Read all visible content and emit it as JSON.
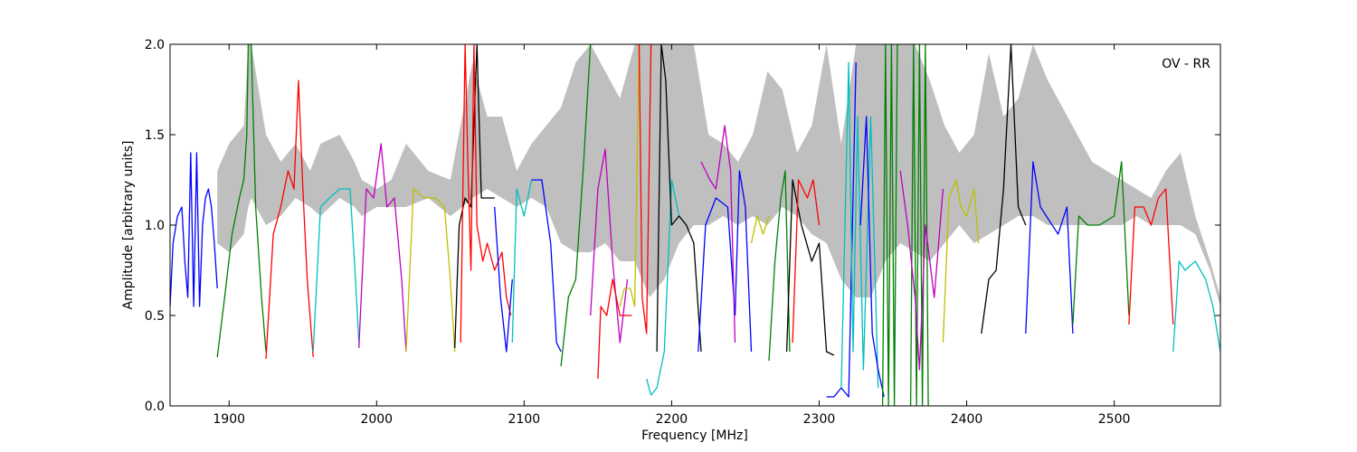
{
  "chart_data": {
    "type": "line",
    "title": "",
    "xlabel": "Frequency [MHz]",
    "ylabel": "Amplitude [arbitrary units]",
    "xlim": [
      1860,
      2572
    ],
    "ylim": [
      0.0,
      2.0
    ],
    "x_ticks": [
      "1900",
      "2000",
      "2100",
      "2200",
      "2300",
      "2400",
      "2500"
    ],
    "x_tick_values": [
      1900,
      2000,
      2100,
      2200,
      2300,
      2400,
      2500
    ],
    "y_ticks": [
      "0.0",
      "0.5",
      "1.0",
      "1.5",
      "2.0"
    ],
    "y_tick_values": [
      0.0,
      0.5,
      1.0,
      1.5,
      2.0
    ],
    "annotation": "OV - RR",
    "annotation_position": "top-right",
    "grid": false,
    "envelope": {
      "color": "#bfbfbf",
      "x": [
        1892,
        1900,
        1910,
        1913,
        1915,
        1925,
        1935,
        1945,
        1955,
        1962,
        1975,
        1985,
        1990,
        2000,
        2010,
        2020,
        2035,
        2050,
        2058,
        2065,
        2075,
        2085,
        2095,
        2105,
        2115,
        2125,
        2135,
        2145,
        2155,
        2165,
        2175,
        2185,
        2195,
        2205,
        2215,
        2225,
        2235,
        2245,
        2255,
        2265,
        2275,
        2285,
        2295,
        2305,
        2315,
        2325,
        2335,
        2345,
        2355,
        2365,
        2375,
        2385,
        2395,
        2405,
        2415,
        2425,
        2435,
        2445,
        2455,
        2465,
        2475,
        2485,
        2495,
        2505,
        2515,
        2525,
        2535,
        2545,
        2555,
        2565,
        2572
      ],
      "upper": [
        1.3,
        1.45,
        1.55,
        2.0,
        2.0,
        1.5,
        1.35,
        1.45,
        1.3,
        1.45,
        1.5,
        1.35,
        1.25,
        1.2,
        1.25,
        1.45,
        1.3,
        1.25,
        1.6,
        1.9,
        1.6,
        1.6,
        1.3,
        1.45,
        1.55,
        1.65,
        1.9,
        2.0,
        1.85,
        1.7,
        2.0,
        2.0,
        2.0,
        2.0,
        2.0,
        1.5,
        1.45,
        1.35,
        1.5,
        1.85,
        1.75,
        1.4,
        1.55,
        2.0,
        1.45,
        2.0,
        2.0,
        2.0,
        2.0,
        2.0,
        1.8,
        1.55,
        1.4,
        1.5,
        1.95,
        1.6,
        1.7,
        2.0,
        1.8,
        1.65,
        1.5,
        1.35,
        1.3,
        1.25,
        1.2,
        1.15,
        1.3,
        1.4,
        1.05,
        0.8,
        0.6
      ],
      "lower": [
        0.9,
        0.85,
        0.95,
        1.1,
        1.15,
        1.0,
        1.05,
        1.15,
        1.1,
        1.05,
        1.15,
        1.1,
        1.05,
        1.1,
        1.1,
        1.1,
        1.15,
        1.05,
        1.1,
        1.15,
        1.2,
        1.15,
        1.1,
        1.15,
        1.1,
        0.9,
        0.85,
        0.85,
        0.9,
        0.8,
        0.8,
        0.6,
        0.7,
        0.9,
        1.0,
        1.0,
        1.05,
        1.0,
        1.05,
        1.0,
        1.1,
        1.05,
        0.95,
        0.9,
        0.7,
        0.6,
        0.6,
        0.8,
        0.9,
        0.85,
        0.8,
        0.9,
        1.0,
        0.9,
        0.95,
        1.0,
        1.05,
        1.05,
        1.0,
        1.0,
        1.0,
        1.0,
        1.0,
        1.0,
        1.05,
        1.0,
        1.0,
        1.0,
        0.95,
        0.75,
        0.55
      ]
    },
    "series": [
      {
        "color": "#0000ff",
        "x": [
          1860,
          1862,
          1865,
          1868,
          1870,
          1872,
          1874,
          1876,
          1878,
          1880,
          1882,
          1884,
          1886,
          1888,
          1890,
          1892
        ],
        "y": [
          0.55,
          0.9,
          1.05,
          1.1,
          0.8,
          0.6,
          1.4,
          0.55,
          1.4,
          0.55,
          1.0,
          1.15,
          1.2,
          1.1,
          0.9,
          0.65
        ]
      },
      {
        "color": "#008000",
        "x": [
          1892,
          1897,
          1902,
          1907,
          1910,
          1912,
          1913,
          1915,
          1918,
          1922,
          1925
        ],
        "y": [
          0.27,
          0.6,
          0.95,
          1.15,
          1.25,
          1.5,
          2.0,
          2.0,
          1.1,
          0.6,
          0.3
        ]
      },
      {
        "color": "#ff0000",
        "x": [
          1925,
          1930,
          1935,
          1940,
          1944,
          1947,
          1950,
          1953,
          1957
        ],
        "y": [
          0.26,
          0.95,
          1.1,
          1.3,
          1.2,
          1.8,
          1.2,
          0.7,
          0.27
        ]
      },
      {
        "color": "#00bfbf",
        "x": [
          1957,
          1962,
          1968,
          1975,
          1982,
          1985,
          1988
        ],
        "y": [
          0.3,
          1.1,
          1.15,
          1.2,
          1.2,
          0.8,
          0.35
        ]
      },
      {
        "color": "#bf00bf",
        "x": [
          1988,
          1993,
          1998,
          2003,
          2007,
          2012,
          2017,
          2020
        ],
        "y": [
          0.32,
          1.2,
          1.15,
          1.45,
          1.1,
          1.15,
          0.7,
          0.3
        ]
      },
      {
        "color": "#bfbf00",
        "x": [
          2020,
          2025,
          2032,
          2040,
          2046,
          2050,
          2053
        ],
        "y": [
          0.3,
          1.2,
          1.15,
          1.15,
          1.1,
          0.7,
          0.3
        ]
      },
      {
        "color": "#000000",
        "x": [
          2053,
          2056,
          2060,
          2064,
          2068,
          2071,
          2075,
          2080
        ],
        "y": [
          0.32,
          1.0,
          1.15,
          1.1,
          2.0,
          1.15,
          1.15,
          1.15
        ]
      },
      {
        "color": "#ff0000",
        "x": [
          2057,
          2060,
          2062,
          2064,
          2066,
          2068,
          2072,
          2075,
          2080,
          2085,
          2088,
          2091
        ],
        "y": [
          0.35,
          2.0,
          1.3,
          0.75,
          2.0,
          1.0,
          0.8,
          0.9,
          0.75,
          0.85,
          0.6,
          0.5
        ]
      },
      {
        "color": "#0000ff",
        "x": [
          2080,
          2084,
          2088,
          2092
        ],
        "y": [
          1.1,
          0.6,
          0.3,
          0.7
        ]
      },
      {
        "color": "#00bfbf",
        "x": [
          2092,
          2095,
          2100,
          2105
        ],
        "y": [
          0.35,
          1.2,
          1.05,
          1.25
        ]
      },
      {
        "color": "#0000ff",
        "x": [
          2105,
          2112,
          2118,
          2122,
          2125
        ],
        "y": [
          1.25,
          1.25,
          0.9,
          0.35,
          0.3
        ]
      },
      {
        "color": "#008000",
        "x": [
          2125,
          2130,
          2135,
          2140,
          2145,
          2148
        ],
        "y": [
          0.22,
          0.6,
          0.7,
          1.3,
          2.0,
          2.0
        ]
      },
      {
        "color": "#bf00bf",
        "x": [
          2145,
          2150,
          2155,
          2160,
          2165,
          2170
        ],
        "y": [
          0.5,
          1.2,
          1.42,
          0.8,
          0.35,
          0.7
        ]
      },
      {
        "color": "#ff0000",
        "x": [
          2150,
          2152,
          2156,
          2160,
          2165,
          2170,
          2173
        ],
        "y": [
          0.15,
          0.55,
          0.5,
          0.7,
          0.5,
          0.5,
          0.5
        ]
      },
      {
        "color": "#bfbf00",
        "x": [
          2165,
          2168,
          2172,
          2175,
          2178
        ],
        "y": [
          0.55,
          0.65,
          0.65,
          0.55,
          2.0
        ]
      },
      {
        "color": "#ff0000",
        "x": [
          2178,
          2180,
          2183,
          2186
        ],
        "y": [
          2.0,
          0.6,
          0.4,
          2.0
        ]
      },
      {
        "color": "#00bfbf",
        "x": [
          2183,
          2186,
          2190,
          2195,
          2200,
          2205,
          2210
        ],
        "y": [
          0.15,
          0.06,
          0.1,
          0.3,
          1.25,
          1.05,
          1.0
        ]
      },
      {
        "color": "#000000",
        "x": [
          2190,
          2193,
          2196,
          2200,
          2205,
          2210,
          2215,
          2220
        ],
        "y": [
          0.3,
          2.0,
          1.8,
          1.0,
          1.05,
          1.0,
          0.9,
          0.3
        ]
      },
      {
        "color": "#0000ff",
        "x": [
          2218,
          2223,
          2230,
          2238,
          2243
        ],
        "y": [
          0.3,
          1.0,
          1.15,
          1.1,
          0.5
        ]
      },
      {
        "color": "#bf00bf",
        "x": [
          2220,
          2226,
          2230,
          2236,
          2240,
          2243
        ],
        "y": [
          1.35,
          1.25,
          1.2,
          1.55,
          1.3,
          0.35
        ]
      },
      {
        "color": "#0000ff",
        "x": [
          2243,
          2246,
          2250,
          2254
        ],
        "y": [
          0.5,
          1.3,
          1.1,
          0.3
        ]
      },
      {
        "color": "#bfbf00",
        "x": [
          2254,
          2258,
          2262,
          2266
        ],
        "y": [
          0.9,
          1.05,
          0.95,
          1.05
        ]
      },
      {
        "color": "#008000",
        "x": [
          2266,
          2270,
          2274,
          2277,
          2280
        ],
        "y": [
          0.25,
          0.8,
          1.15,
          1.3,
          0.3
        ]
      },
      {
        "color": "#000000",
        "x": [
          2278,
          2282,
          2288,
          2295,
          2300,
          2305,
          2310
        ],
        "y": [
          0.3,
          1.25,
          1.0,
          0.8,
          0.9,
          0.3,
          0.28
        ]
      },
      {
        "color": "#ff0000",
        "x": [
          2282,
          2286,
          2292,
          2296,
          2300
        ],
        "y": [
          0.35,
          1.25,
          1.15,
          1.25,
          1.0
        ]
      },
      {
        "color": "#0000ff",
        "x": [
          2305,
          2310,
          2315,
          2320,
          2325
        ],
        "y": [
          0.05,
          0.05,
          0.1,
          0.05,
          1.9
        ]
      },
      {
        "color": "#00bfbf",
        "x": [
          2315,
          2320,
          2323,
          2326,
          2330,
          2335,
          2340
        ],
        "y": [
          0.1,
          1.9,
          0.3,
          1.6,
          0.2,
          1.6,
          0.1
        ]
      },
      {
        "color": "#0000ff",
        "x": [
          2328,
          2332,
          2336,
          2340,
          2344
        ],
        "y": [
          1.0,
          1.6,
          0.4,
          0.2,
          0.05
        ]
      },
      {
        "color": "#008000",
        "x": [
          2343,
          2345,
          2347,
          2349,
          2351,
          2353
        ],
        "y": [
          0.0,
          2.0,
          0.0,
          2.0,
          0.0,
          2.0
        ]
      },
      {
        "color": "#008000",
        "x": [
          2362,
          2364,
          2366,
          2368,
          2370,
          2372,
          2374
        ],
        "y": [
          0.0,
          2.0,
          0.0,
          2.0,
          0.0,
          2.0,
          0.0
        ]
      },
      {
        "color": "#bf00bf",
        "x": [
          2355,
          2360,
          2365,
          2368,
          2372,
          2378,
          2384
        ],
        "y": [
          1.3,
          1.0,
          0.6,
          0.2,
          1.0,
          0.6,
          1.2
        ]
      },
      {
        "color": "#bfbf00",
        "x": [
          2384,
          2388,
          2393,
          2396,
          2400,
          2405,
          2408
        ],
        "y": [
          0.35,
          1.15,
          1.25,
          1.1,
          1.05,
          1.2,
          0.9
        ]
      },
      {
        "color": "#000000",
        "x": [
          2410,
          2415,
          2420,
          2425,
          2430,
          2435,
          2440
        ],
        "y": [
          0.4,
          0.7,
          0.75,
          1.2,
          2.0,
          1.1,
          1.0
        ]
      },
      {
        "color": "#0000ff",
        "x": [
          2440,
          2445,
          2450,
          2458,
          2462,
          2468,
          2472
        ],
        "y": [
          0.4,
          1.35,
          1.1,
          1.0,
          0.95,
          1.1,
          0.4
        ]
      },
      {
        "color": "#008000",
        "x": [
          2472,
          2476,
          2482,
          2490,
          2500,
          2505,
          2510
        ],
        "y": [
          0.45,
          1.05,
          1.0,
          1.0,
          1.05,
          1.35,
          0.5
        ]
      },
      {
        "color": "#ff0000",
        "x": [
          2510,
          2514,
          2520,
          2525,
          2530,
          2535,
          2540
        ],
        "y": [
          0.45,
          1.1,
          1.1,
          1.0,
          1.15,
          1.2,
          0.45
        ]
      },
      {
        "color": "#00bfbf",
        "x": [
          2540,
          2544,
          2548,
          2555,
          2562,
          2567,
          2572
        ],
        "y": [
          0.3,
          0.8,
          0.75,
          0.8,
          0.7,
          0.55,
          0.3
        ]
      }
    ]
  }
}
